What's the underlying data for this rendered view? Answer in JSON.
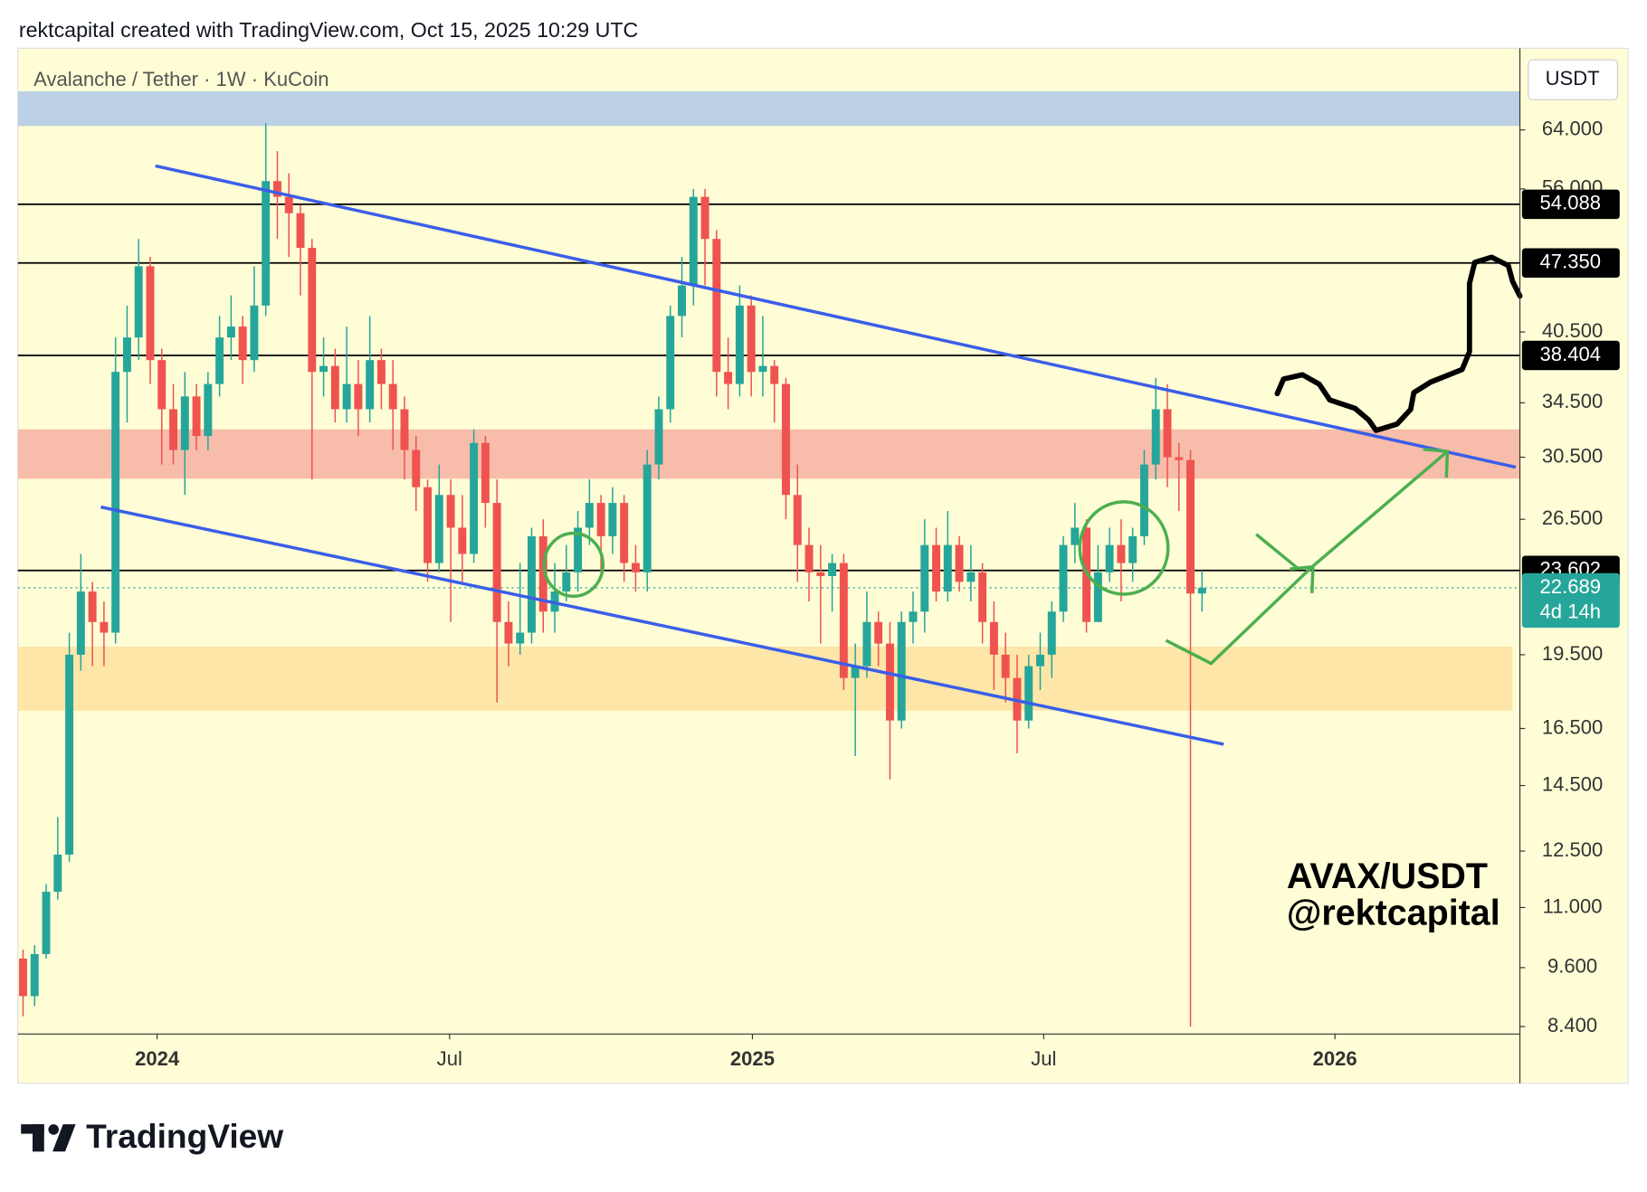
{
  "header": "rektcapital created with TradingView.com, Oct 15, 2025 10:29 UTC",
  "footer_logo": "TradingView",
  "chart_data": {
    "type": "candlestick",
    "title": "Avalanche / Tether · 1W · KuCoin",
    "currency": "USDT",
    "up_color": "#26a69a",
    "down_color": "#ef5350",
    "log_scale": true,
    "ylim": [
      8.26,
      77.0
    ],
    "yticks": [
      {
        "value": 64,
        "label": "64.000"
      },
      {
        "value": 56,
        "label": "56.000"
      },
      {
        "value": 40.5,
        "label": "40.500"
      },
      {
        "value": 34.5,
        "label": "34.500"
      },
      {
        "value": 30.5,
        "label": "30.500"
      },
      {
        "value": 26.5,
        "label": "26.500"
      },
      {
        "value": 19.5,
        "label": "19.500"
      },
      {
        "value": 16.5,
        "label": "16.500"
      },
      {
        "value": 14.5,
        "label": "14.500"
      },
      {
        "value": 12.5,
        "label": "12.500"
      },
      {
        "value": 11,
        "label": "11.000"
      },
      {
        "value": 9.6,
        "label": "9.600"
      },
      {
        "value": 8.4,
        "label": "8.400"
      }
    ],
    "xlim": [
      -0.45,
      129.5
    ],
    "xticks": [
      {
        "value": 11.6,
        "label": "2024"
      },
      {
        "value": 36.9,
        "label": "Jul"
      },
      {
        "value": 63.1,
        "label": "2025"
      },
      {
        "value": 88.3,
        "label": "Jul"
      },
      {
        "value": 113.5,
        "label": "2026"
      }
    ],
    "levels": [
      54.088,
      {
        "value": 47.35,
        "label": "47.350"
      },
      38.404,
      23.602
    ],
    "last_price": 22.689,
    "countdown": "4d 14h",
    "annotation": [
      "AVAX/USDT",
      "@rektcapital"
    ],
    "open": [
      9.8,
      9.0,
      9.9,
      11.4,
      12.4,
      19.5,
      22.5,
      21.0,
      20.5,
      37.0,
      40.0,
      47,
      38,
      34,
      31,
      35,
      32,
      36,
      40,
      41,
      38,
      43,
      57,
      55,
      53,
      49,
      37,
      37.5,
      34,
      36,
      34,
      38,
      36,
      34,
      31,
      28.5,
      24,
      28,
      26,
      24.5,
      31.5,
      27.5,
      21,
      20,
      20.5,
      25.5,
      21.5,
      22.5,
      23.5,
      26,
      27.5,
      25.5,
      27.5,
      24,
      23.5,
      30,
      34,
      42,
      45,
      55,
      50,
      37,
      36,
      43,
      37,
      37.5,
      36,
      28,
      25,
      23.5,
      23.3,
      24,
      18.5,
      19,
      21,
      20,
      16.8,
      21,
      21.5,
      25,
      22.5,
      25,
      23,
      23.5,
      21,
      19.5,
      18.5,
      16.8,
      19,
      19.5,
      21.5,
      25,
      26,
      21,
      23.5,
      25,
      24,
      25.5,
      30,
      34,
      30.5,
      30.3,
      22.4
    ],
    "high": [
      10.0,
      10.1,
      11.6,
      13.5,
      20.5,
      24.5,
      23.0,
      22.0,
      40.0,
      43.0,
      50.0,
      48,
      39,
      36,
      37,
      36,
      37,
      42,
      44,
      42,
      47,
      65,
      61,
      58,
      54,
      50,
      40,
      39,
      41,
      38,
      42,
      39,
      38,
      35,
      32,
      29,
      30,
      29,
      28,
      32.5,
      32,
      29,
      22,
      24,
      26,
      26.5,
      24,
      25,
      27,
      29,
      28,
      28.5,
      28,
      25,
      31,
      35,
      43,
      48,
      56,
      56,
      51,
      40,
      45,
      44,
      42,
      38,
      36.5,
      30,
      26,
      25,
      24.5,
      24.5,
      20,
      22.5,
      21.5,
      21,
      21.5,
      22.5,
      26.5,
      26,
      27,
      25.5,
      25,
      24,
      22,
      20.5,
      19.5,
      19.5,
      20.5,
      22,
      25.5,
      27.5,
      26.5,
      25,
      26,
      26.5,
      26,
      31,
      36.5,
      36,
      31.5,
      31,
      23.6
    ],
    "low": [
      8.6,
      8.8,
      9.8,
      11.2,
      12.2,
      18.8,
      19.0,
      19.0,
      20.0,
      33.0,
      38.0,
      36,
      30,
      30,
      28,
      31,
      31,
      35,
      38,
      36,
      37,
      42,
      50,
      48,
      44,
      29,
      35,
      33,
      33,
      32,
      33,
      34,
      31,
      29,
      27,
      23,
      23.5,
      21,
      23,
      24,
      26,
      17.5,
      19,
      19.5,
      20,
      20.5,
      20.5,
      22,
      22.5,
      25,
      23.5,
      24.5,
      23,
      22.5,
      22.5,
      29,
      33,
      40,
      43,
      45,
      35,
      34,
      35,
      35,
      35,
      33,
      26.5,
      23,
      22,
      20,
      21.5,
      18,
      15.5,
      18.5,
      19,
      14.7,
      16.5,
      20,
      20.5,
      22,
      22,
      22.5,
      22,
      20,
      18,
      17.5,
      15.6,
      16.5,
      18,
      18.5,
      21,
      24,
      20.5,
      21,
      23,
      22,
      23,
      25,
      29,
      28.5,
      27,
      8.4,
      21.5
    ],
    "close": [
      9.0,
      9.9,
      11.4,
      12.4,
      19.5,
      22.5,
      21.0,
      20.5,
      37.0,
      40.0,
      47.0,
      38,
      34,
      31,
      35,
      32,
      36,
      40,
      41,
      38,
      43,
      57,
      55,
      53,
      49,
      37,
      37.5,
      34,
      36,
      34,
      38,
      36,
      34,
      31,
      28.5,
      24,
      28,
      26,
      24.5,
      31.5,
      27.5,
      21,
      20,
      20.5,
      25.5,
      21.5,
      22.5,
      23.5,
      26,
      27.5,
      25.5,
      27.5,
      24,
      23.5,
      30,
      34,
      42,
      45,
      55,
      50,
      37,
      36,
      43,
      37,
      37.5,
      36,
      28,
      25,
      23.5,
      23.3,
      24,
      18.5,
      19,
      21,
      20,
      16.8,
      21,
      21.5,
      25,
      22.5,
      25,
      23,
      23.5,
      21,
      19.5,
      18.5,
      16.8,
      19,
      19.5,
      21.5,
      25,
      26,
      21,
      23.5,
      25,
      24,
      25.5,
      30,
      34,
      30.5,
      30.3,
      22.4,
      22.689
    ]
  }
}
